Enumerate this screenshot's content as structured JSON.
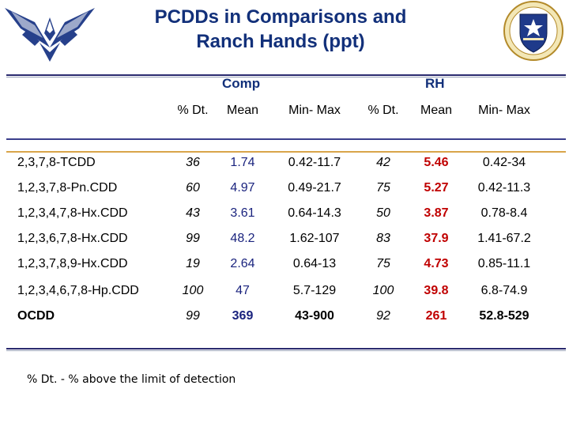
{
  "title": {
    "line1": "PCDDs in Comparisons and",
    "line2": "Ranch Hands (ppt)"
  },
  "colors": {
    "title": "#12307a",
    "accent_line": "#d9a54a",
    "rh_mean": "#c00000",
    "comp_mean": "#1a237e"
  },
  "logos": {
    "left": "air-force-wings-logo",
    "right": "shield-emblem"
  },
  "table": {
    "groups": [
      "Comp",
      "RH"
    ],
    "columns": [
      "% Dt.",
      "Mean",
      "Min- Max",
      "% Dt.",
      "Mean",
      "Min- Max"
    ],
    "rows": [
      {
        "label": "2,3,7,8-TCDD",
        "cells": [
          "36",
          "1.74",
          "0.42-11.7",
          "42",
          "5.46",
          "0.42-34"
        ]
      },
      {
        "label": "1,2,3,7,8-Pn.CDD",
        "cells": [
          "60",
          "4.97",
          "0.49-21.7",
          "75",
          "5.27",
          "0.42-11.3"
        ]
      },
      {
        "label": "1,2,3,4,7,8-Hx.CDD",
        "cells": [
          "43",
          "3.61",
          "0.64-14.3",
          "50",
          "3.87",
          "0.78-8.4"
        ]
      },
      {
        "label": "1,2,3,6,7,8-Hx.CDD",
        "cells": [
          "99",
          "48.2",
          "1.62-107",
          "83",
          "37.9",
          "1.41-67.2"
        ]
      },
      {
        "label": "1,2,3,7,8,9-Hx.CDD",
        "cells": [
          "19",
          "2.64",
          "0.64-13",
          "75",
          "4.73",
          "0.85-11.1"
        ]
      },
      {
        "label": "1,2,3,4,6,7,8-Hp.CDD",
        "cells": [
          "100",
          "47",
          "5.7-129",
          "100",
          "39.8",
          "6.8-74.9"
        ]
      },
      {
        "label": "OCDD",
        "cells": [
          "99",
          "369",
          "43-900",
          "92",
          "261",
          "52.8-529"
        ]
      }
    ]
  },
  "footnote": "% Dt. - % above the limit of detection"
}
